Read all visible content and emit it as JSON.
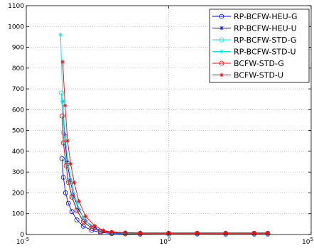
{
  "chart_data": {
    "type": "line",
    "xscale": "log",
    "xlim": [
      1e-05,
      100000
    ],
    "ylim": [
      0,
      1100
    ],
    "x_ticks": [
      1e-05,
      1,
      100000
    ],
    "x_tick_labels": [
      {
        "base": "10",
        "exp": "-5"
      },
      {
        "base": "10",
        "exp": "0"
      },
      {
        "base": "10",
        "exp": "5"
      }
    ],
    "y_ticks": [
      0,
      100,
      200,
      300,
      400,
      500,
      600,
      700,
      800,
      900,
      1000,
      1100
    ],
    "grid": true,
    "grid_style": "dotted",
    "legend_position": "top-right",
    "series": [
      {
        "name": "RP-BCFW-HEU-G",
        "color": "#0000ff",
        "marker": "circle",
        "x": [
          0.00018,
          0.0002,
          0.00024,
          0.0003,
          0.0004,
          0.0006,
          0.001,
          0.002,
          0.004,
          0.01,
          0.03,
          0.1,
          1,
          10,
          100,
          1000,
          3000
        ],
        "y": [
          365,
          275,
          200,
          150,
          110,
          70,
          40,
          20,
          10,
          5,
          3,
          2,
          2,
          2,
          2,
          2,
          2
        ]
      },
      {
        "name": "RP-BCFW-HEU-U",
        "color": "#0000ff",
        "marker": "star",
        "x": [
          0.00019,
          0.00022,
          0.00027,
          0.00035,
          0.00045,
          0.0007,
          0.0012,
          0.0025,
          0.005,
          0.01,
          0.03,
          0.1,
          1,
          10,
          100,
          1000,
          3000
        ],
        "y": [
          640,
          480,
          350,
          260,
          190,
          120,
          65,
          32,
          16,
          10,
          7,
          5,
          5,
          5,
          5,
          5,
          5
        ]
      },
      {
        "name": "RP-BCFW-STD-G",
        "color": "#00e5e5",
        "marker": "circle",
        "x": [
          0.00017,
          0.0002,
          0.00025,
          0.0003,
          0.0004,
          0.0006,
          0.001,
          0.002,
          0.004,
          0.01,
          0.03,
          0.1,
          1,
          10,
          100,
          1000,
          3000
        ],
        "y": [
          680,
          490,
          350,
          260,
          185,
          120,
          65,
          30,
          14,
          8,
          5,
          4,
          3,
          3,
          3,
          3,
          3
        ]
      },
      {
        "name": "RP-BCFW-STD-U",
        "color": "#00e5e5",
        "marker": "star",
        "x": [
          0.00016,
          0.00019,
          0.00023,
          0.0003,
          0.0004,
          0.0006,
          0.001,
          0.002,
          0.004,
          0.01,
          0.03,
          0.1,
          1,
          10,
          100,
          1000,
          3000
        ],
        "y": [
          960,
          640,
          470,
          340,
          245,
          150,
          80,
          36,
          17,
          9,
          6,
          5,
          4,
          4,
          4,
          4,
          4
        ]
      },
      {
        "name": "BCFW-STD-G",
        "color": "#ff0000",
        "marker": "circle",
        "x": [
          0.00018,
          0.0002,
          0.00025,
          0.0003,
          0.0004,
          0.0006,
          0.001,
          0.002,
          0.004,
          0.01,
          0.03,
          0.1,
          1,
          10,
          100,
          1000,
          3000
        ],
        "y": [
          570,
          440,
          330,
          250,
          180,
          115,
          62,
          30,
          15,
          9,
          7,
          6,
          6,
          6,
          6,
          6,
          6
        ]
      },
      {
        "name": "BCFW-STD-U",
        "color": "#ff0000",
        "marker": "star",
        "x": [
          0.00019,
          0.00023,
          0.00028,
          0.00036,
          0.00048,
          0.0007,
          0.0012,
          0.0025,
          0.005,
          0.01,
          0.03,
          0.1,
          1,
          10,
          100,
          1000,
          3000
        ],
        "y": [
          830,
          620,
          450,
          340,
          250,
          160,
          88,
          42,
          20,
          12,
          9,
          8,
          8,
          8,
          8,
          8,
          8
        ]
      }
    ]
  }
}
